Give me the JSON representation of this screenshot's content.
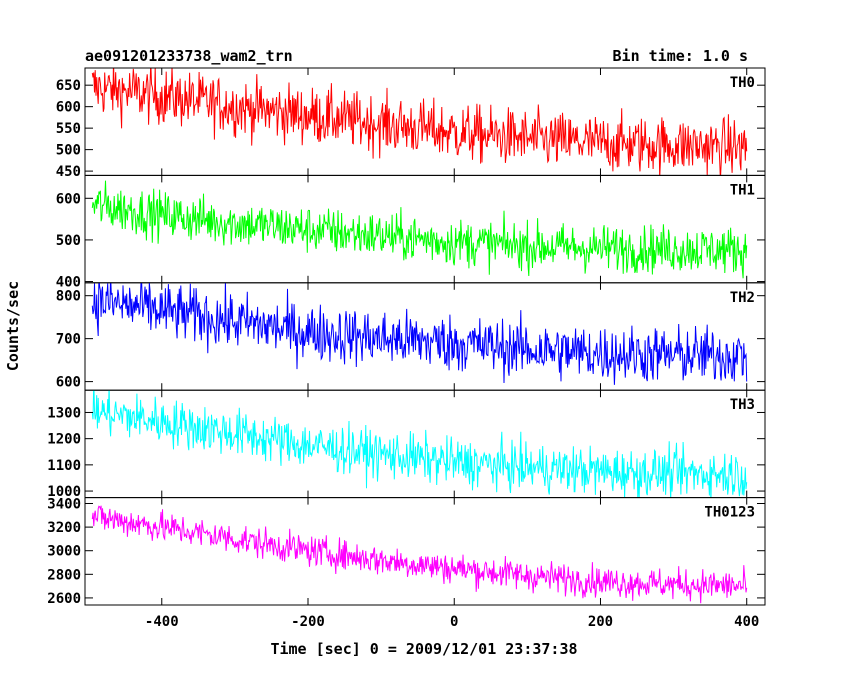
{
  "chart_data": {
    "type": "line",
    "title": "ae091201233738_wam2_trn",
    "bin_time_label": "Bin time: 1.0 s",
    "xlabel": "Time [sec] 0 = 2009/12/01 23:37:38",
    "ylabel": "Counts/sec",
    "xlim": [
      -505,
      425
    ],
    "x_ticks": [
      -400,
      -200,
      0,
      200,
      400
    ],
    "x_step": 1,
    "grid": false,
    "panels": [
      {
        "name": "TH0",
        "color": "#ff0000",
        "ylim": [
          440,
          690
        ],
        "ticks": [
          450,
          500,
          550,
          600,
          650
        ],
        "start": 645,
        "end": 505,
        "noise": 33,
        "trend_x": [
          -495,
          -400,
          -300,
          -200,
          -100,
          0,
          100,
          200,
          300,
          400
        ],
        "trend_y": [
          645,
          625,
          600,
          580,
          560,
          540,
          525,
          515,
          510,
          505
        ]
      },
      {
        "name": "TH1",
        "color": "#00ff00",
        "ylim": [
          397,
          655
        ],
        "ticks": [
          400,
          500,
          600
        ],
        "start": 585,
        "end": 475,
        "noise": 28,
        "trend_x": [
          -495,
          -400,
          -300,
          -200,
          -100,
          0,
          100,
          200,
          300,
          400
        ],
        "trend_y": [
          585,
          560,
          540,
          525,
          510,
          495,
          485,
          480,
          478,
          475
        ]
      },
      {
        "name": "TH2",
        "color": "#0000ff",
        "ylim": [
          580,
          830
        ],
        "ticks": [
          600,
          700,
          800
        ],
        "start": 790,
        "end": 660,
        "noise": 33,
        "trend_x": [
          -495,
          -400,
          -300,
          -200,
          -100,
          0,
          100,
          200,
          300,
          400
        ],
        "trend_y": [
          790,
          765,
          740,
          715,
          700,
          690,
          675,
          665,
          662,
          660
        ]
      },
      {
        "name": "TH3",
        "color": "#00ffff",
        "ylim": [
          975,
          1385
        ],
        "ticks": [
          1000,
          1100,
          1200,
          1300
        ],
        "start": 1305,
        "end": 1065,
        "noise": 45,
        "trend_x": [
          -495,
          -400,
          -300,
          -200,
          -100,
          0,
          100,
          200,
          300,
          400
        ],
        "trend_y": [
          1305,
          1265,
          1220,
          1175,
          1140,
          1110,
          1090,
          1075,
          1068,
          1065
        ]
      },
      {
        "name": "TH0123",
        "color": "#ff00ff",
        "ylim": [
          2540,
          3450
        ],
        "ticks": [
          2600,
          2800,
          3000,
          3200,
          3400
        ],
        "start": 3290,
        "end": 2700,
        "noise": 65,
        "trend_x": [
          -495,
          -400,
          -300,
          -200,
          -100,
          0,
          100,
          200,
          300,
          400
        ],
        "trend_y": [
          3290,
          3200,
          3100,
          3000,
          2920,
          2850,
          2790,
          2740,
          2715,
          2700
        ]
      }
    ]
  }
}
